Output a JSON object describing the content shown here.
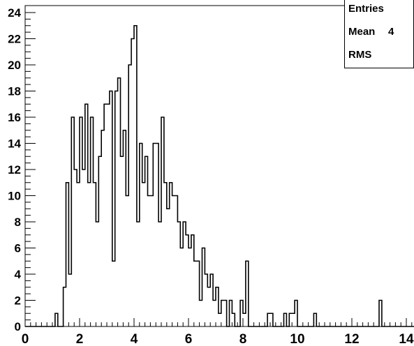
{
  "stats": {
    "entries_label": "Entries",
    "mean_label": "Mean",
    "mean_value": "4",
    "rms_label": "RMS"
  },
  "chart_data": {
    "type": "bar",
    "style": "step-histogram",
    "title": "",
    "xlabel": "",
    "ylabel": "",
    "xlim": [
      0,
      15
    ],
    "ylim": [
      0,
      24
    ],
    "bin_width": 0.1,
    "first_bin_low_edge": 0.0,
    "x_ticks": [
      "0",
      "2",
      "4",
      "6",
      "8",
      "10",
      "12",
      "14"
    ],
    "y_ticks": [
      "0",
      "2",
      "4",
      "6",
      "8",
      "10",
      "12",
      "14",
      "16",
      "18",
      "20",
      "22",
      "24"
    ],
    "line_color": "#000000",
    "grid": false,
    "values": [
      0,
      0,
      0,
      0,
      0,
      0,
      0,
      0,
      0,
      0,
      0,
      1,
      0,
      0,
      3,
      11,
      4,
      16,
      12,
      11,
      16,
      12,
      17,
      11,
      16,
      11,
      8,
      13,
      15,
      17,
      17,
      18,
      5,
      18,
      19,
      13,
      15,
      10,
      20,
      22,
      23,
      8,
      14,
      11,
      13,
      10,
      10,
      14,
      14,
      8,
      16,
      11,
      9,
      11,
      10,
      10,
      8,
      6,
      8,
      7,
      6,
      7,
      5,
      5,
      2,
      6,
      4,
      3,
      4,
      2,
      3,
      1,
      2,
      2,
      0,
      2,
      1,
      0,
      0,
      2,
      1,
      5,
      0,
      0,
      0,
      0,
      0,
      0,
      0,
      1,
      1,
      0,
      0,
      0,
      0,
      1,
      0,
      1,
      1,
      2,
      0,
      0,
      0,
      0,
      0,
      0,
      1,
      0,
      0,
      0,
      0,
      0,
      0,
      0,
      0,
      0,
      0,
      0,
      0,
      0,
      0,
      0,
      0,
      0,
      0,
      0,
      0,
      0,
      0,
      0,
      2,
      0,
      0,
      0,
      0,
      0,
      0,
      0,
      0,
      0,
      0,
      0,
      0,
      0,
      0,
      0,
      0,
      0,
      0,
      0
    ]
  }
}
